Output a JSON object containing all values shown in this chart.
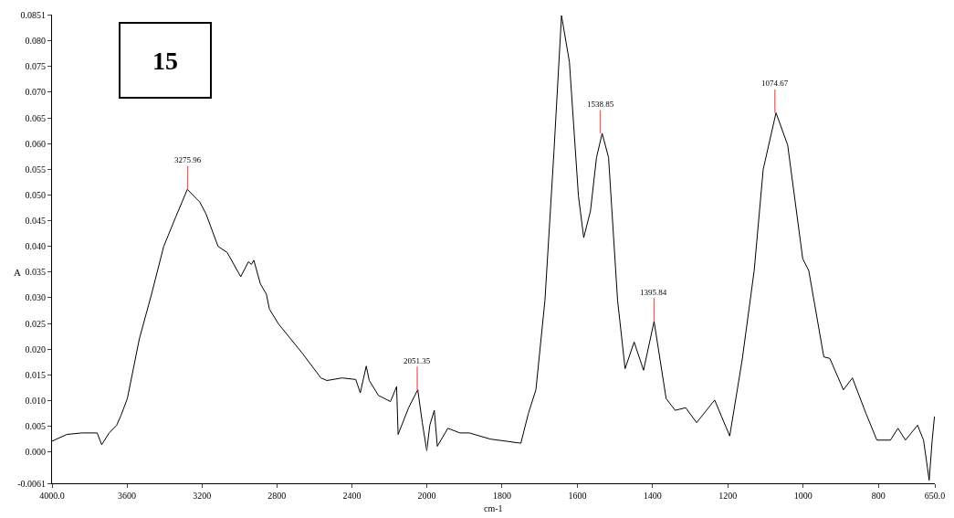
{
  "chart_data": [
    {
      "type": "line",
      "ylabel": "A",
      "color": "#000000",
      "marker": "none",
      "line_style": "solid",
      "x": [
        4000,
        3921,
        3840,
        3759,
        3735,
        3695,
        3655,
        3631,
        3598,
        3566,
        3534,
        3469,
        3404,
        3340,
        3278,
        3211,
        3178,
        3114,
        3065,
        2993,
        2952,
        2936,
        2923,
        2888,
        2856,
        2840,
        2791,
        2662,
        2565,
        2533,
        2452,
        2379,
        2355,
        2323,
        2307,
        2258,
        2194,
        2161,
        2153,
        2097,
        2048,
        2024,
        2000
      ],
      "values": [
        0.0021,
        0.0034,
        0.0037,
        0.0037,
        0.0014,
        0.0037,
        0.0052,
        0.0072,
        0.0104,
        0.0162,
        0.022,
        0.0307,
        0.04,
        0.0457,
        0.0511,
        0.0486,
        0.0463,
        0.04,
        0.0388,
        0.0341,
        0.037,
        0.0365,
        0.0373,
        0.0327,
        0.0307,
        0.0278,
        0.0249,
        0.0191,
        0.0144,
        0.0139,
        0.0144,
        0.0141,
        0.0115,
        0.0167,
        0.0139,
        0.011,
        0.0098,
        0.0127,
        0.0034,
        0.0086,
        0.0121,
        0.0057,
        0.0002
      ],
      "xlim": [
        4000,
        2000
      ],
      "xticks": [
        {
          "value": 4000,
          "label": "4000.0"
        },
        3600,
        3200,
        2800,
        2400,
        2000
      ],
      "ylim": [
        -0.0061,
        0.0851
      ],
      "yticks": [
        -0.0061,
        {
          "value": 0,
          "label": "0.000"
        },
        {
          "value": 0.005,
          "label": "0.005"
        },
        {
          "value": 0.01,
          "label": "0.010"
        },
        {
          "value": 0.015,
          "label": "0.015"
        },
        {
          "value": 0.02,
          "label": "0.020"
        },
        {
          "value": 0.025,
          "label": "0.025"
        },
        {
          "value": 0.03,
          "label": "0.030"
        },
        {
          "value": 0.035,
          "label": "0.035"
        },
        {
          "value": 0.04,
          "label": "0.040"
        },
        {
          "value": 0.045,
          "label": "0.045"
        },
        {
          "value": 0.05,
          "label": "0.050"
        },
        {
          "value": 0.055,
          "label": "0.055"
        },
        {
          "value": 0.06,
          "label": "0.060"
        },
        {
          "value": 0.065,
          "label": "0.065"
        },
        {
          "value": 0.07,
          "label": "0.070"
        },
        {
          "value": 0.075,
          "label": "0.075"
        },
        {
          "value": 0.08,
          "label": "0.080"
        },
        0.0851
      ],
      "annotations": [
        "15",
        {
          "text": "3275.96",
          "x": 3276,
          "y": 0.0511
        },
        {
          "text": "2051.35",
          "x": 2051,
          "y": 0.0121
        }
      ]
    },
    {
      "type": "line",
      "xlabel": "cm-1",
      "color": "#000000",
      "marker": "none",
      "line_style": "solid",
      "tick_labels": "x",
      "x": [
        2000,
        1992,
        1980,
        1972,
        1944,
        1912,
        1887,
        1831,
        1750,
        1730,
        1710,
        1686,
        1662,
        1642,
        1621,
        1597,
        1583,
        1565,
        1549,
        1534,
        1517,
        1493,
        1473,
        1449,
        1424,
        1396,
        1364,
        1340,
        1312,
        1283,
        1235,
        1195,
        1162,
        1130,
        1106,
        1072,
        1041,
        1001,
        985,
        945,
        929,
        893,
        869,
        833,
        804,
        768,
        748,
        728,
        696,
        680,
        665,
        657,
        651
      ],
      "values": [
        0.0002,
        0.0052,
        0.0081,
        0.0011,
        0.0046,
        0.0037,
        0.0037,
        0.0025,
        0.0017,
        0.0075,
        0.0121,
        0.0295,
        0.0585,
        0.0849,
        0.0759,
        0.0498,
        0.0417,
        0.0469,
        0.0573,
        0.062,
        0.0573,
        0.0295,
        0.0162,
        0.0214,
        0.0159,
        0.0254,
        0.0104,
        0.0081,
        0.0086,
        0.0057,
        0.0101,
        0.0031,
        0.0179,
        0.0353,
        0.055,
        0.066,
        0.0597,
        0.0376,
        0.0353,
        0.0185,
        0.0182,
        0.0121,
        0.0144,
        0.0075,
        0.0023,
        0.0023,
        0.0046,
        0.0023,
        0.0052,
        0.0023,
        -0.0055,
        0.0023,
        0.0069
      ],
      "xlim": [
        2000,
        650
      ],
      "xticks": [
        1800,
        1600,
        1400,
        1200,
        1000,
        800,
        {
          "value": 650,
          "label": "650.0"
        }
      ],
      "ylim": [
        -0.0061,
        0.0851
      ],
      "annotations": [
        {
          "text": "1538.85",
          "x": 1539,
          "y": 0.062
        },
        {
          "text": "1395.84",
          "x": 1396,
          "y": 0.0254
        },
        {
          "text": "1074.67",
          "x": 1075,
          "y": 0.066
        }
      ]
    }
  ]
}
